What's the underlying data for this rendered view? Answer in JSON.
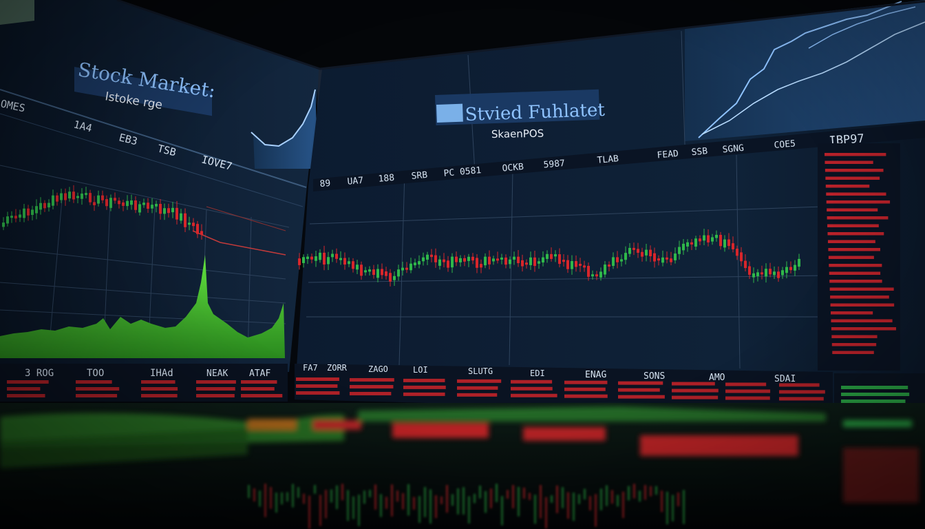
{
  "left_screen": {
    "title": "Stock Market:",
    "subtitle": "Istoke rge",
    "corner_label": "OMES",
    "column_labels": [
      "1A4",
      "EB3",
      "TSB",
      "IOVE7"
    ],
    "bottom_labels": [
      "3 ROG",
      "TOO",
      "IHAd",
      "NEAK",
      "ATAF"
    ]
  },
  "right_screen": {
    "title": "Stvied Fuhlatet",
    "subtitle": "SkaenPOS",
    "top_right_label": "IBP97",
    "header_labels": [
      "89",
      "UA7",
      "188",
      "SRB",
      "PC 0581",
      "OCKB",
      "5987",
      "TLAB",
      "FEAD",
      "SSB",
      "SGNG",
      "COE5"
    ],
    "bottom_labels": [
      "FA7",
      "ZORR",
      "ZAGO",
      "LOI",
      "SLUTG",
      "EDI",
      "ENAG",
      "SONS",
      "AMO",
      "SDAI"
    ]
  },
  "colors": {
    "background": "#05080d",
    "panel": "#0c1a2e",
    "grid": "#3a4e66",
    "up": "#2fb84a",
    "down": "#d8262b",
    "accent_line": "#7fb0ff",
    "volume": "#4ec934"
  }
}
